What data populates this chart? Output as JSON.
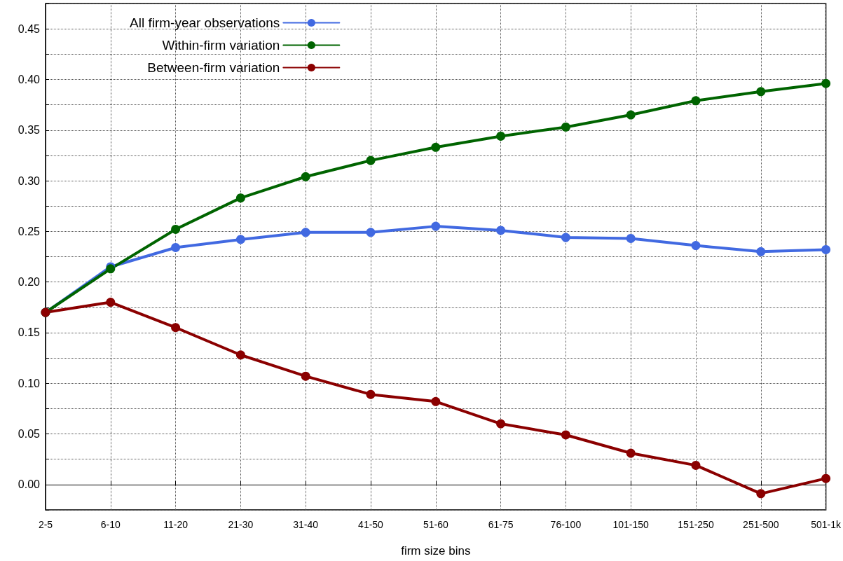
{
  "chart_data": {
    "type": "line",
    "xlabel": "firm size bins",
    "categories": [
      "2-5",
      "6-10",
      "11-20",
      "21-30",
      "31-40",
      "41-50",
      "51-60",
      "61-75",
      "76-100",
      "101-150",
      "151-250",
      "251-500",
      "501-1k"
    ],
    "series": [
      {
        "name": "All firm-year observations",
        "color": "#4169e1",
        "values": [
          0.17,
          0.215,
          0.234,
          0.242,
          0.249,
          0.249,
          0.255,
          0.251,
          0.244,
          0.243,
          0.236,
          0.23,
          0.232
        ]
      },
      {
        "name": "Within-firm variation",
        "color": "#006400",
        "values": [
          0.17,
          0.213,
          0.252,
          0.283,
          0.304,
          0.32,
          0.333,
          0.344,
          0.353,
          0.365,
          0.379,
          0.388,
          0.396
        ]
      },
      {
        "name": "Between-firm variation",
        "color": "#8b0000",
        "values": [
          0.17,
          0.18,
          0.155,
          0.128,
          0.107,
          0.089,
          0.082,
          0.06,
          0.049,
          0.031,
          0.019,
          -0.009,
          0.006
        ]
      }
    ],
    "ylim": [
      -0.025,
      0.475
    ],
    "yticks": [
      {
        "value": -0.025,
        "label": null
      },
      "0.00",
      {
        "value": 0.025,
        "label": null
      },
      {
        "value": 0.05,
        "label": "0.05"
      },
      {
        "value": 0.075,
        "label": null
      },
      {
        "value": 0.1,
        "label": "0.10"
      },
      {
        "value": 0.125,
        "label": null
      },
      {
        "value": 0.15,
        "label": "0.15"
      },
      {
        "value": 0.175,
        "label": null
      },
      {
        "value": 0.2,
        "label": "0.20"
      },
      {
        "value": 0.225,
        "label": null
      },
      {
        "value": 0.25,
        "label": "0.25"
      },
      {
        "value": 0.275,
        "label": null
      },
      {
        "value": 0.3,
        "label": "0.30"
      },
      {
        "value": 0.325,
        "label": null
      },
      {
        "value": 0.35,
        "label": "0.35"
      },
      {
        "value": 0.375,
        "label": null
      },
      {
        "value": 0.4,
        "label": "0.40"
      },
      {
        "value": 0.425,
        "label": null
      },
      {
        "value": 0.45,
        "label": "0.45"
      },
      {
        "value": 0.475,
        "label": null
      }
    ],
    "grid": true,
    "legend": "top left",
    "marker": "circle",
    "line_style": "solid"
  }
}
